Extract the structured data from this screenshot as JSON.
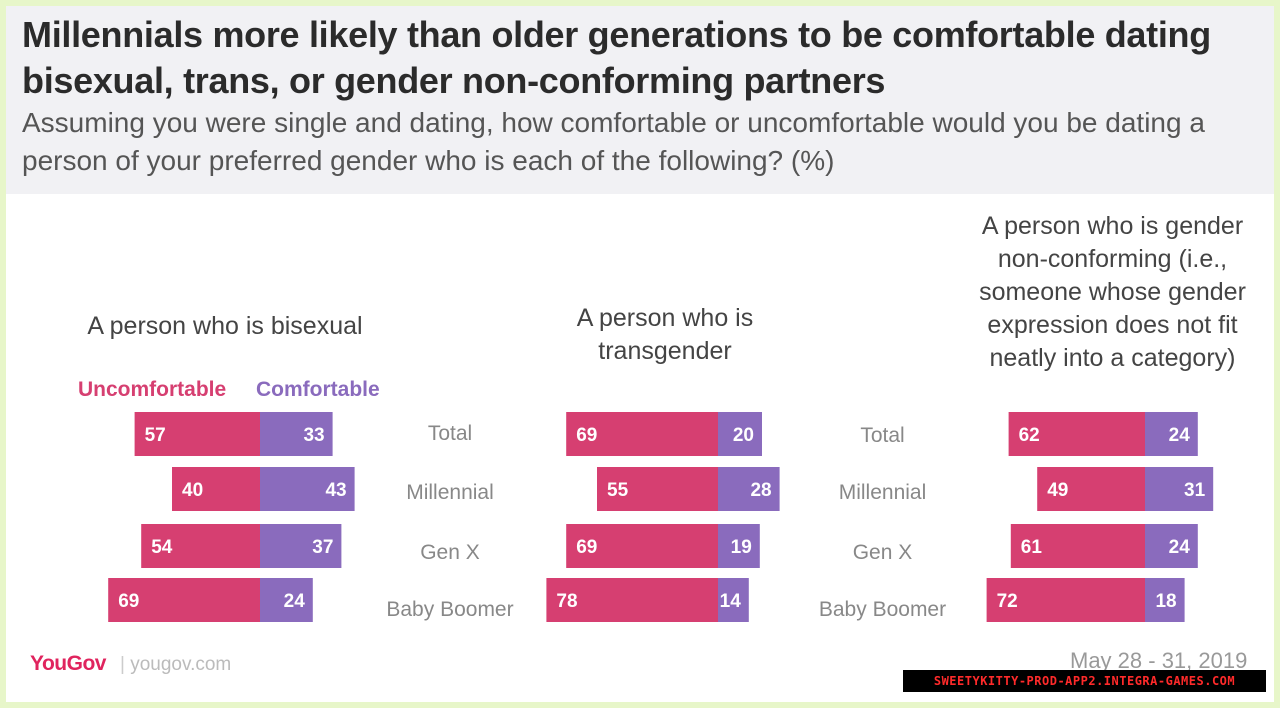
{
  "title": "Millennials more likely than older generations to be comfortable dating bisexual, trans, or gender non-conforming partners",
  "subtitle": "Assuming you were single and dating, how comfortable or uncomfortable would you be dating a person of your preferred gender who is each of the following? (%)",
  "colors": {
    "uncomfortable": "#d63f71",
    "comfortable": "#8a6bbd",
    "header_bg": "#f1f1f4"
  },
  "legend": {
    "uncomfortable": "Uncomfortable",
    "comfortable": "Comfortable"
  },
  "row_labels": [
    "Total",
    "Millennial",
    "Gen X",
    "Baby Boomer"
  ],
  "footer": {
    "logo": "YouGov",
    "url": "yougov.com",
    "date": "May 28 - 31, 2019"
  },
  "banner": "SWEETYKITTY-PROD-APP2.INTEGRA-GAMES.COM",
  "chart_data": [
    {
      "type": "bar",
      "title": "A person who is bisexual",
      "categories": [
        "Total",
        "Millennial",
        "Gen X",
        "Baby Boomer"
      ],
      "series": [
        {
          "name": "Uncomfortable",
          "values": [
            57,
            40,
            54,
            69
          ]
        },
        {
          "name": "Comfortable",
          "values": [
            33,
            43,
            37,
            24
          ]
        }
      ]
    },
    {
      "type": "bar",
      "title": "A person who is transgender",
      "categories": [
        "Total",
        "Millennial",
        "Gen X",
        "Baby Boomer"
      ],
      "series": [
        {
          "name": "Uncomfortable",
          "values": [
            69,
            55,
            69,
            78
          ]
        },
        {
          "name": "Comfortable",
          "values": [
            20,
            28,
            19,
            14
          ]
        }
      ]
    },
    {
      "type": "bar",
      "title": "A person who is gender non-conforming (i.e., someone whose gender expression does not fit neatly into a category)",
      "categories": [
        "Total",
        "Millennial",
        "Gen X",
        "Baby Boomer"
      ],
      "series": [
        {
          "name": "Uncomfortable",
          "values": [
            62,
            49,
            61,
            72
          ]
        },
        {
          "name": "Comfortable",
          "values": [
            24,
            31,
            24,
            18
          ]
        }
      ]
    }
  ]
}
